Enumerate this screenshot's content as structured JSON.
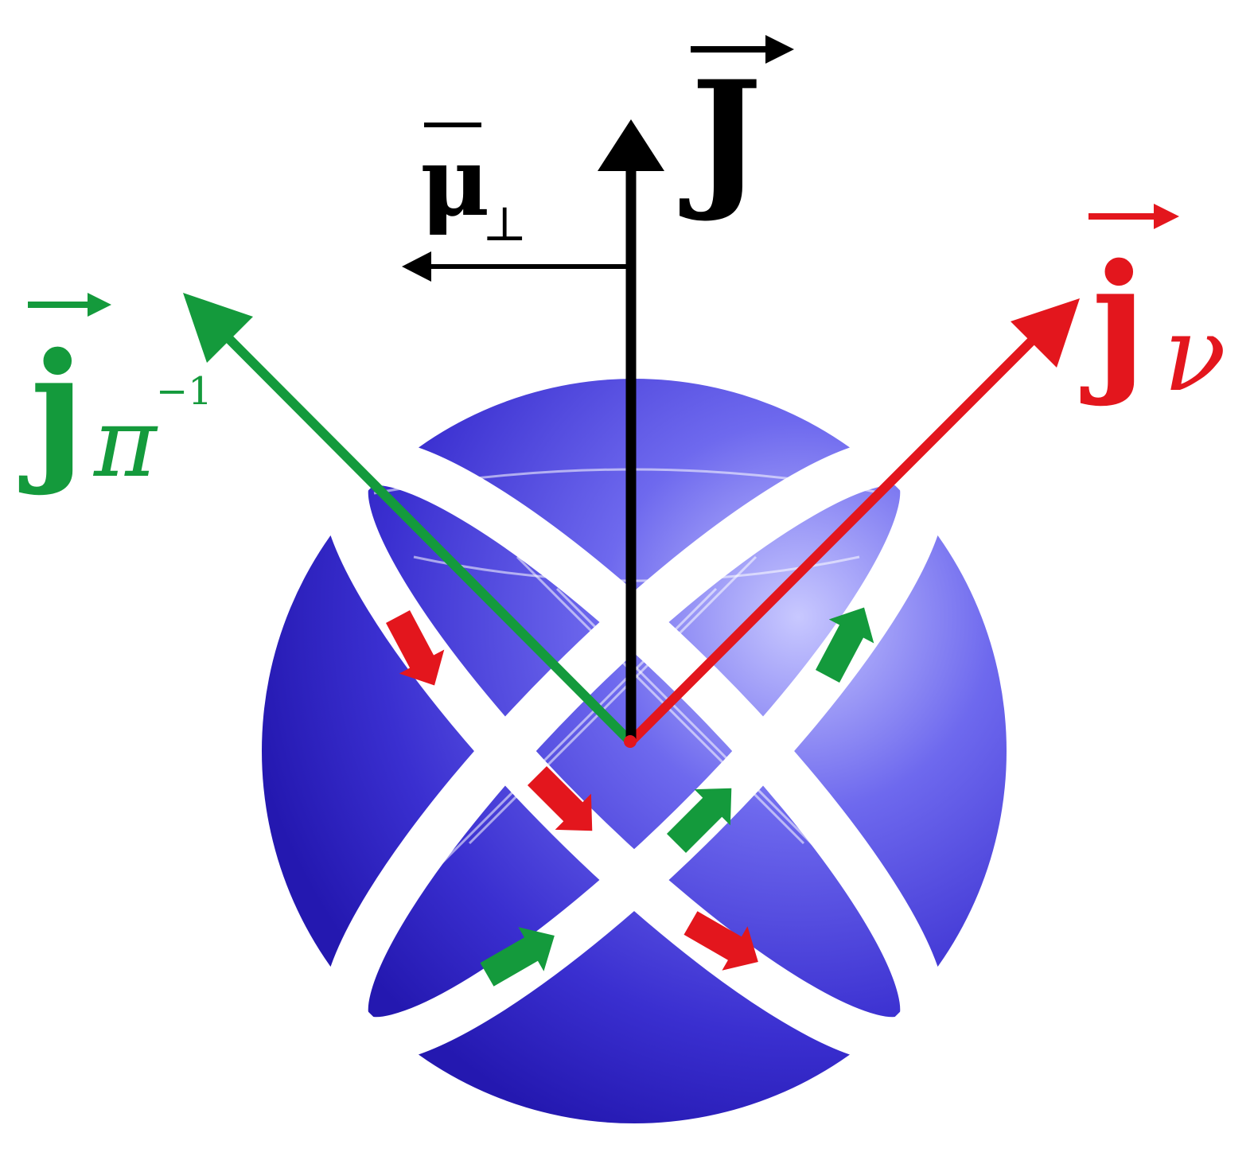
{
  "colors": {
    "sphere_light": "#b8b8ff",
    "sphere_mid": "#5a55e6",
    "sphere_dark": "#2a1fb8",
    "ring": "#ffffff",
    "neutron": "#e3161d",
    "proton_hole": "#149a3c",
    "total": "#000000"
  },
  "labels": {
    "J": {
      "base": "J"
    },
    "mu": {
      "base": "μ",
      "sub": "⊥"
    },
    "j_nu": {
      "base": "j",
      "sub": "ν"
    },
    "j_pi": {
      "base": "j",
      "sub": "π",
      "sup": "−1"
    }
  }
}
